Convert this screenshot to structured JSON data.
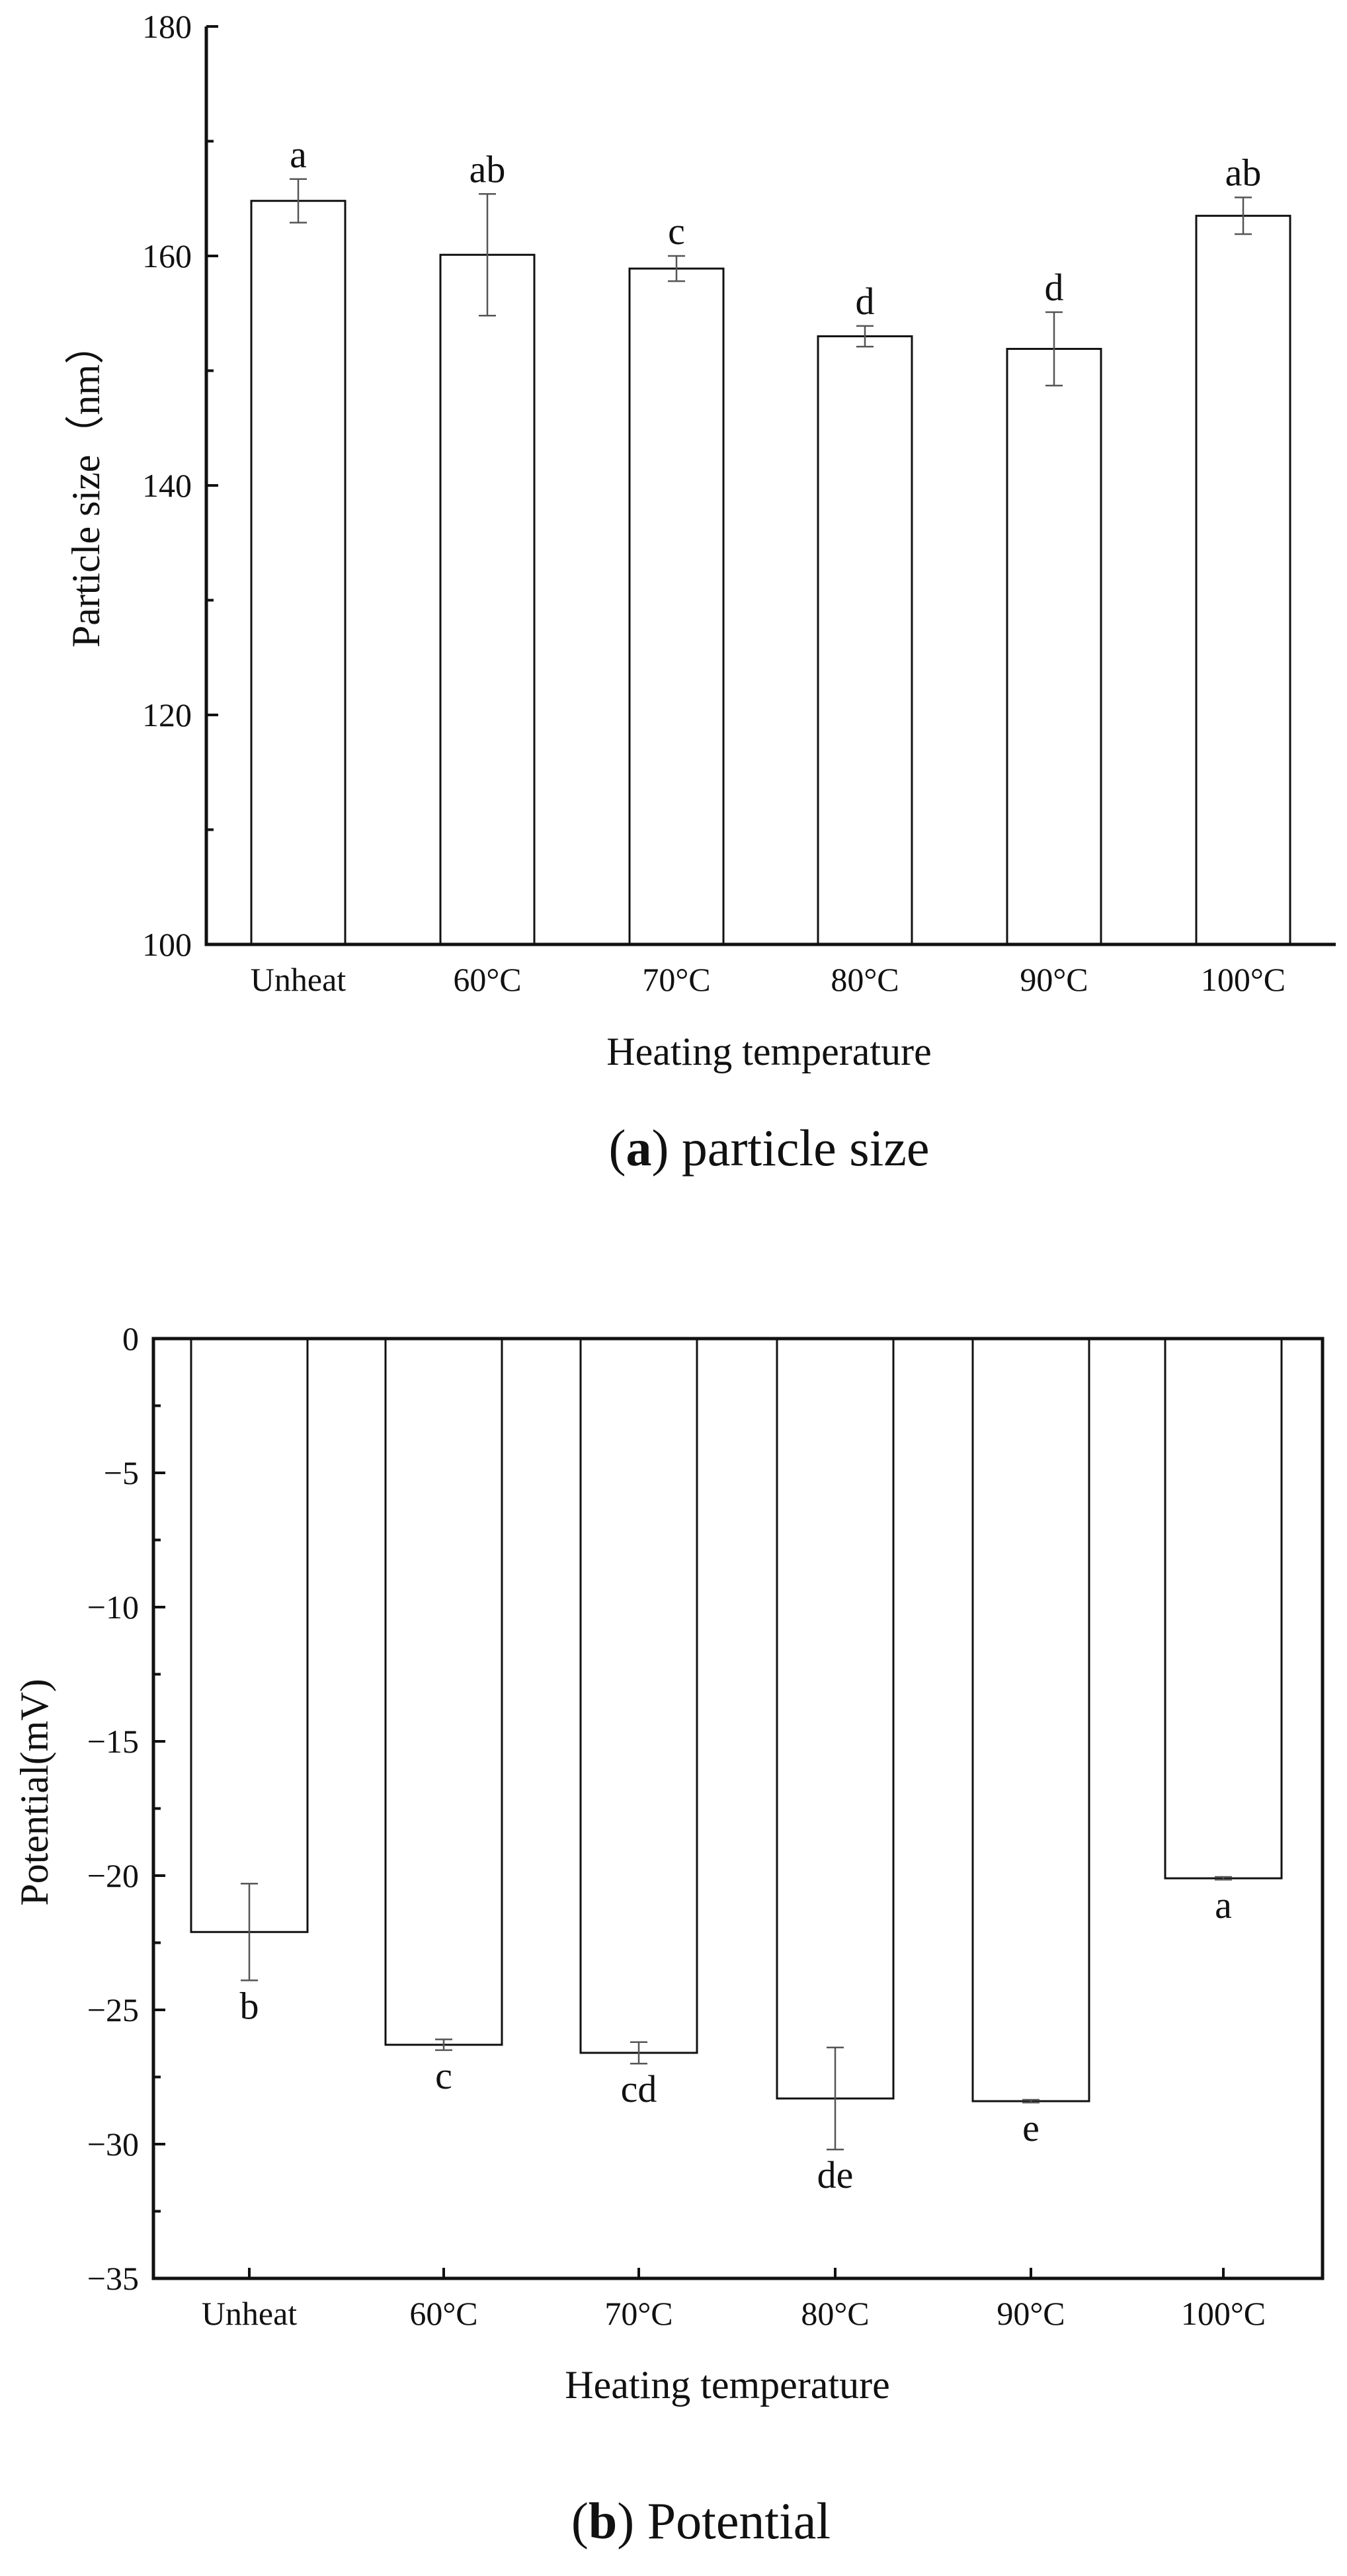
{
  "chart_data": [
    {
      "type": "bar",
      "categories": [
        "Unheat",
        "60°C",
        "70°C",
        "80°C",
        "90°C",
        "100°C"
      ],
      "values": [
        164.8,
        160.1,
        158.9,
        153.0,
        151.9,
        163.5
      ],
      "errors": [
        1.9,
        5.3,
        1.1,
        0.9,
        3.2,
        1.6
      ],
      "significance": [
        "a",
        "ab",
        "c",
        "d",
        "d",
        "ab"
      ],
      "xlabel": "Heating temperature",
      "ylabel": "Particle size（nm）",
      "ylim": [
        100,
        180
      ],
      "yticks": [
        100,
        120,
        140,
        160,
        180
      ],
      "frame": "left-bottom",
      "grid": false,
      "caption_letter": "a",
      "caption_text": "particle size"
    },
    {
      "type": "bar",
      "categories": [
        "Unheat",
        "60°C",
        "70°C",
        "80°C",
        "90°C",
        "100°C"
      ],
      "values": [
        -22.1,
        -26.3,
        -26.6,
        -28.3,
        -28.4,
        -20.1
      ],
      "errors": [
        1.8,
        0.2,
        0.4,
        1.9,
        0.05,
        0.05
      ],
      "significance": [
        "b",
        "c",
        "cd",
        "de",
        "e",
        "a"
      ],
      "xlabel": "Heating temperature",
      "ylabel": "Potential(mV)",
      "ylim": [
        -35,
        0
      ],
      "yticks": [
        0,
        -5,
        -10,
        -15,
        -20,
        -25,
        -30,
        -35
      ],
      "frame": "box",
      "grid": false,
      "caption_letter": "b",
      "caption_text": "Potential"
    }
  ]
}
